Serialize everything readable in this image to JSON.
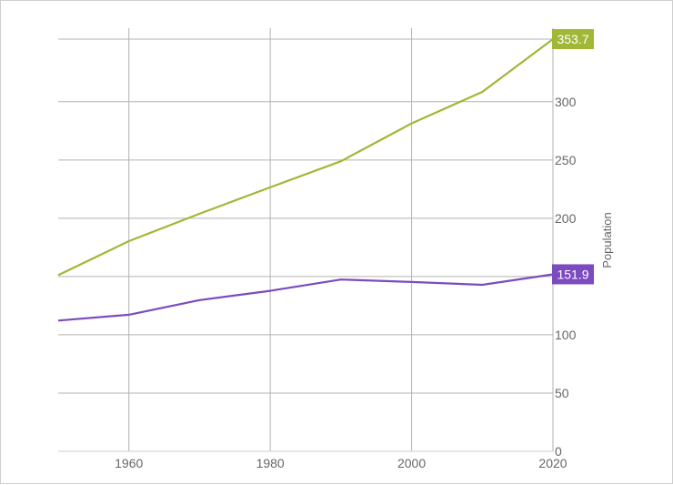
{
  "chart_data": {
    "type": "line",
    "ylabel": "Population",
    "xlim": [
      1950,
      2020
    ],
    "ylim": [
      0,
      353.7
    ],
    "x_ticks": [
      "1960",
      "1980",
      "2000",
      "2020"
    ],
    "x_tick_values": [
      1960,
      1980,
      2000,
      2020
    ],
    "y_ticks": [
      "0",
      "50",
      "100",
      "150",
      "200",
      "250",
      "300"
    ],
    "y_tick_values": [
      0,
      50,
      100,
      150,
      200,
      250,
      300
    ],
    "grid": true,
    "series": [
      {
        "color": "#a0b836",
        "end_label": "353.7",
        "x": [
          1950,
          1960,
          1970,
          1980,
          1990,
          2000,
          2010,
          2020
        ],
        "y": [
          151.2,
          180.4,
          203.9,
          226.5,
          248.9,
          281.4,
          308.4,
          353.7
        ]
      },
      {
        "color": "#7b4bbf",
        "end_label": "151.9",
        "x": [
          1950,
          1960,
          1970,
          1980,
          1990,
          2000,
          2010,
          2020
        ],
        "y": [
          112.2,
          117.2,
          129.8,
          137.7,
          147.4,
          145.3,
          142.9,
          151.9
        ]
      }
    ]
  }
}
